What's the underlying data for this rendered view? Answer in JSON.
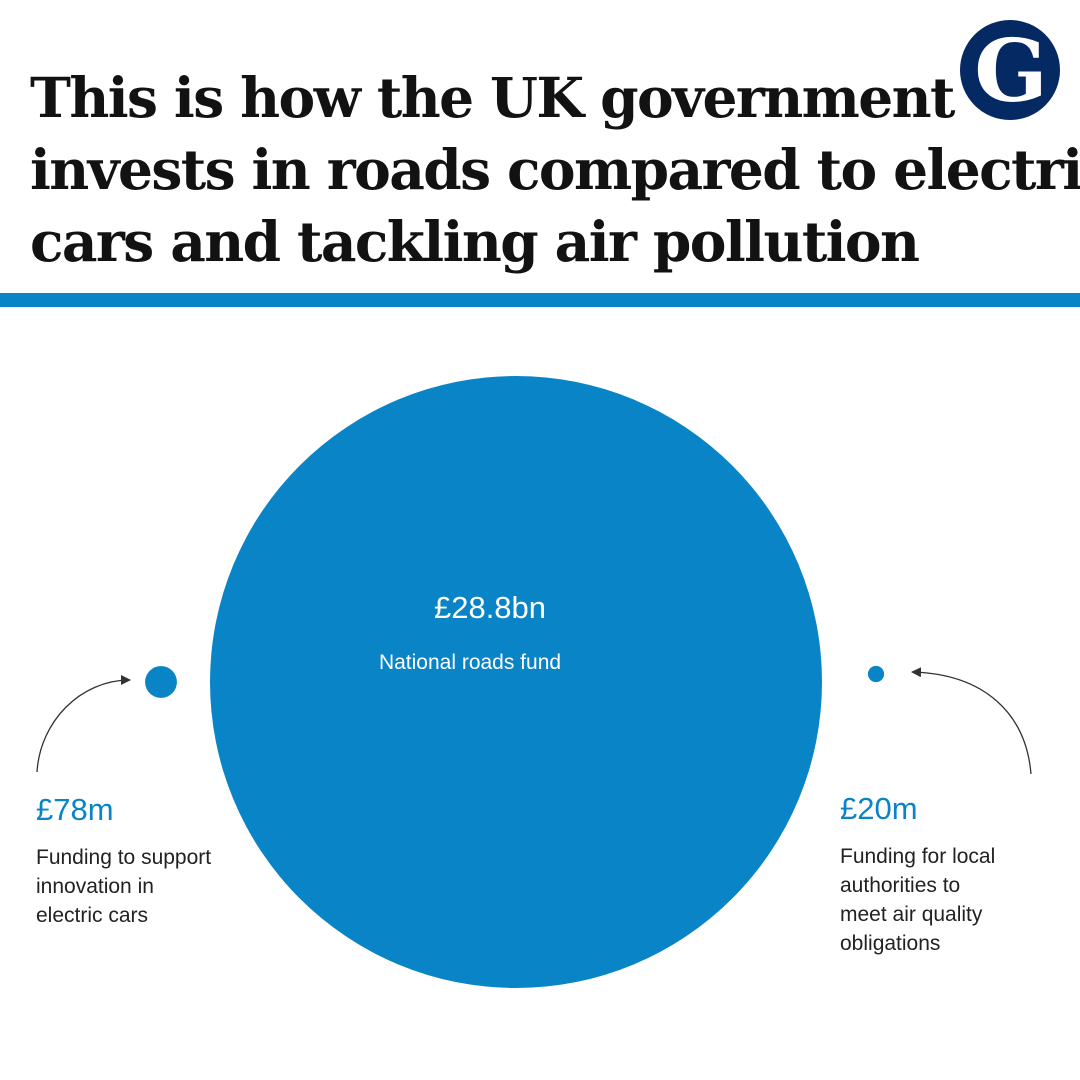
{
  "title_lines": [
    "This is how the UK government",
    "invests in roads compared to electric",
    "cars and tackling air pollution"
  ],
  "logo": {
    "icon": "guardian-g-logo-icon",
    "letter": "G",
    "bg_color": "#052962",
    "fg_color": "#ffffff"
  },
  "colors": {
    "accent": "#0984c6",
    "rule": "#0984c6",
    "title": "#121212",
    "label": "#222222",
    "arrow": "#333333"
  },
  "chart_data": {
    "type": "bubble",
    "title": "This is how the UK government invests in roads compared to electric cars and tackling air pollution",
    "value_unit": "£m",
    "bubbles": [
      {
        "id": "roads",
        "value": 28800,
        "value_label": "£28.8bn",
        "label_lines": [
          "National roads fund"
        ]
      },
      {
        "id": "ev",
        "value": 78,
        "value_label": "£78m",
        "label_lines": [
          "Funding to support",
          "innovation in",
          "electric cars"
        ]
      },
      {
        "id": "air",
        "value": 20,
        "value_label": "£20m",
        "label_lines": [
          "Funding for local",
          "authorities to",
          "meet air quality",
          "obligations"
        ]
      }
    ]
  }
}
